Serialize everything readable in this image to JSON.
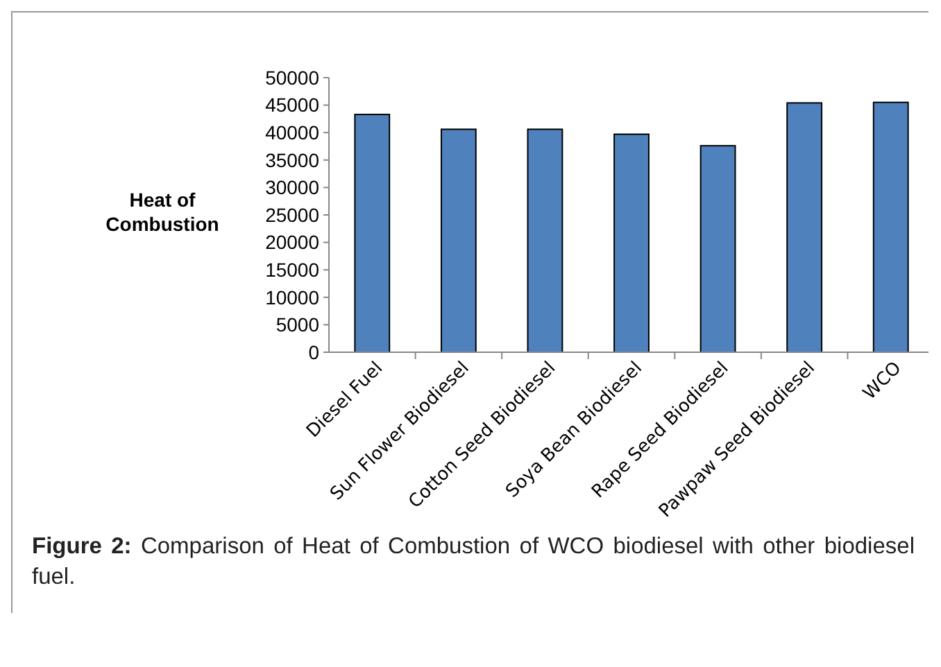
{
  "chart_data": {
    "type": "bar",
    "ylabel": "Heat of Combustion",
    "categories": [
      "Diesel Fuel",
      "Sun Flower Biodiesel",
      "Cotton Seed Biodiesel",
      "Soya Bean Biodiesel",
      "Rape Seed Biodiesel",
      "Pawpaw Seed Biodiesel",
      "WCO"
    ],
    "values": [
      43300,
      40600,
      40600,
      39700,
      37600,
      45400,
      45500
    ],
    "color": "#4f81bd",
    "ylim": [
      0,
      50000
    ],
    "yticks": [
      0,
      5000,
      10000,
      15000,
      20000,
      25000,
      30000,
      35000,
      40000,
      45000,
      50000
    ],
    "grid": false,
    "annotations": [
      "Figure 2: Comparison of Heat of Combustion of WCO biodiesel with other biodiesel fuel."
    ]
  }
}
